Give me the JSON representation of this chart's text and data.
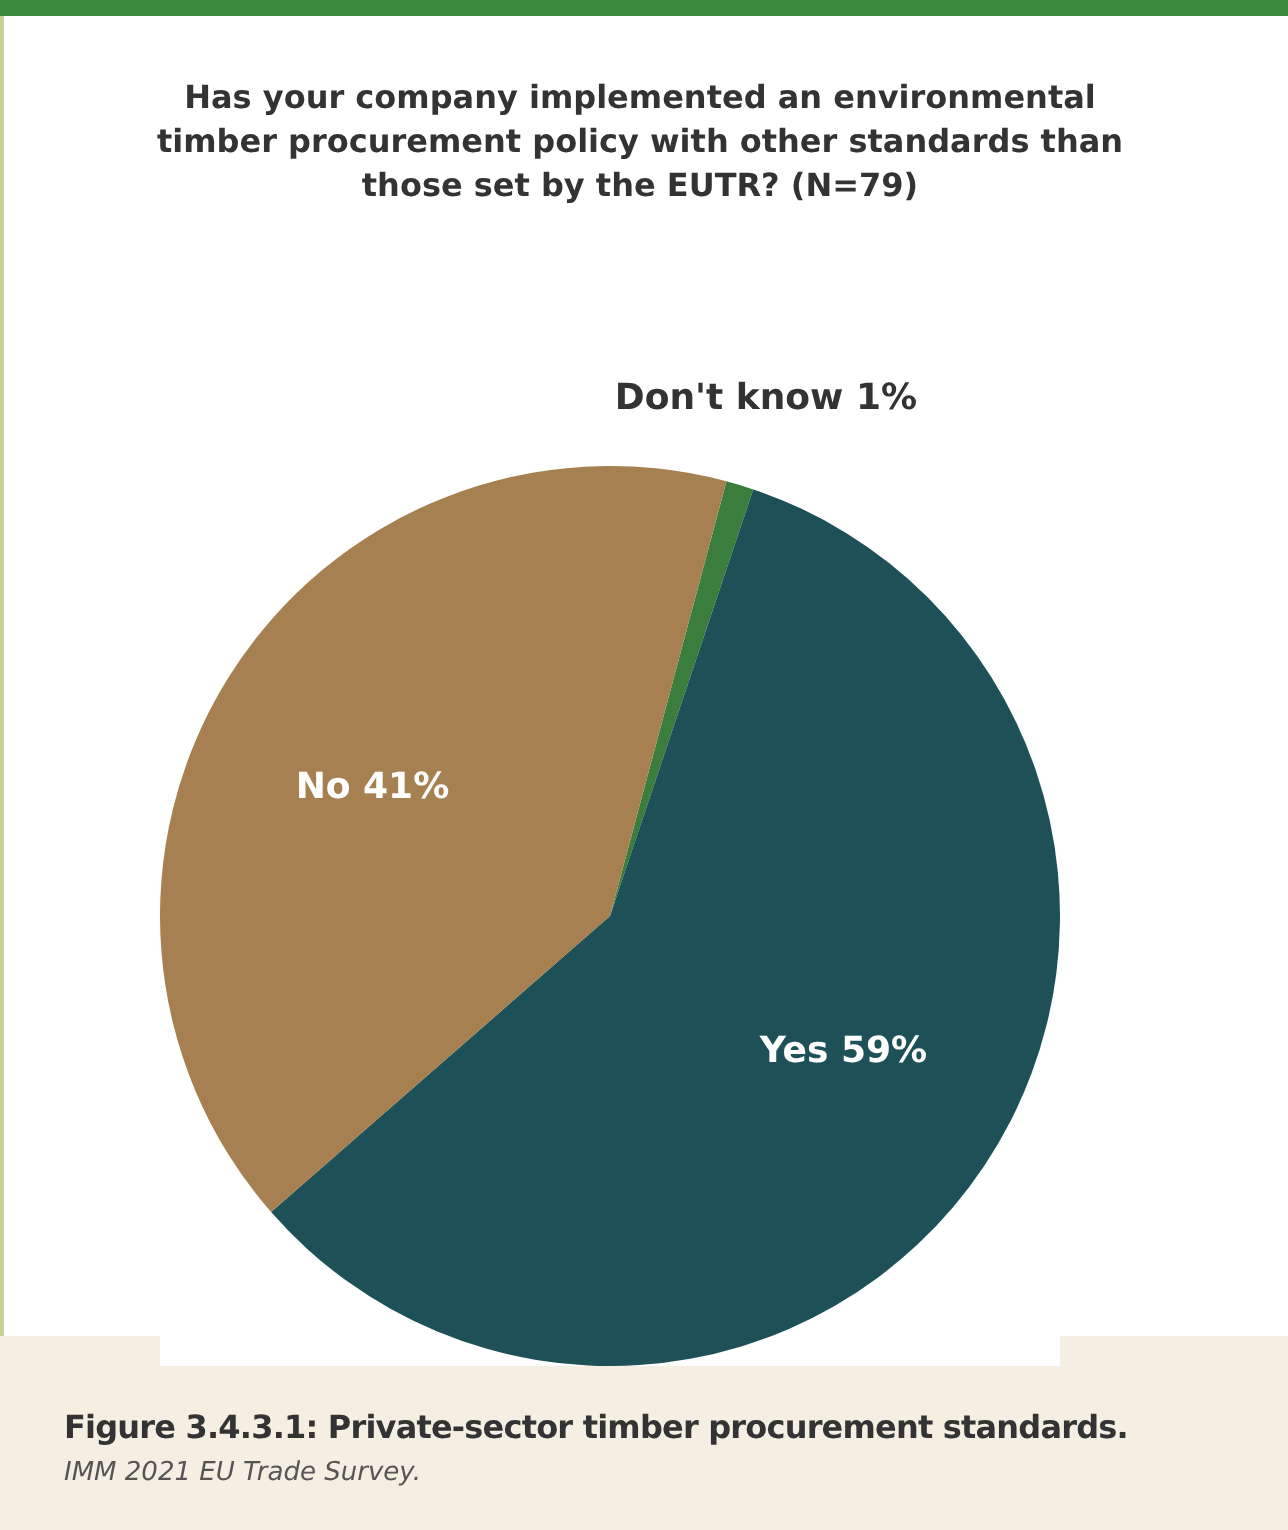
{
  "chart_data": {
    "type": "pie",
    "title": "Has your company implemented an environmental timber procurement policy with other standards than those set by the EUTR? (N=79)",
    "categories": [
      "Don't know",
      "Yes",
      "No"
    ],
    "values": [
      1,
      59,
      41
    ],
    "colors": [
      "#3a7d3c",
      "#1e5157",
      "#a68050"
    ],
    "value_labels": [
      "1%",
      "59%",
      "41%"
    ],
    "annotations": [
      "Figure 3.4.3.1: Private-sector timber procurement standards.",
      "IMM 2021 EU Trade Survey."
    ]
  }
}
